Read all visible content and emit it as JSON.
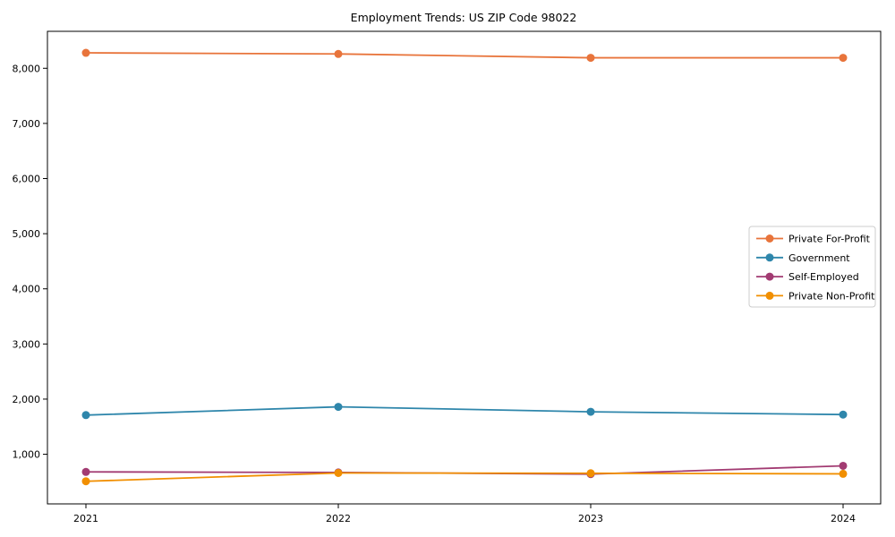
{
  "chart_data": {
    "type": "line",
    "title": "Employment Trends: US ZIP Code 98022",
    "categories": [
      "2021",
      "2022",
      "2023",
      "2024"
    ],
    "series": [
      {
        "name": "Private For-Profit",
        "color": "#E8743B",
        "values": [
          8280,
          8260,
          8190,
          8190
        ]
      },
      {
        "name": "Government",
        "color": "#2E86AB",
        "values": [
          1710,
          1860,
          1770,
          1720
        ]
      },
      {
        "name": "Self-Employed",
        "color": "#A23B72",
        "values": [
          680,
          670,
          640,
          790
        ]
      },
      {
        "name": "Private Non-Profit",
        "color": "#F18F01",
        "values": [
          510,
          660,
          655,
          645
        ]
      }
    ],
    "xlabel": "",
    "ylabel": "",
    "ylim": [
      100,
      8670
    ],
    "yticks": [
      1000,
      2000,
      3000,
      4000,
      5000,
      6000,
      7000,
      8000
    ],
    "ytick_labels": [
      "1,000",
      "2,000",
      "3,000",
      "4,000",
      "5,000",
      "6,000",
      "7,000",
      "8,000"
    ],
    "grid": false,
    "legend_position": "center right",
    "axis_color": "#000000",
    "background_color": "#ffffff",
    "legend_border_color": "#cccccc"
  }
}
